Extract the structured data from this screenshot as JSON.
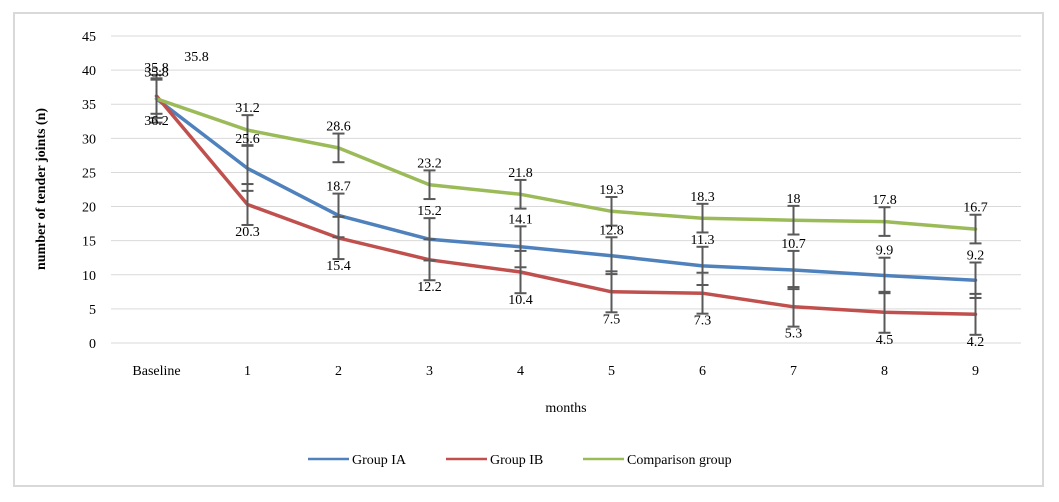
{
  "chart_data": {
    "type": "line",
    "title": "",
    "xlabel": "months",
    "ylabel": "number of tender joints (n)",
    "ylim": [
      0,
      45
    ],
    "yticks": [
      0,
      5,
      10,
      15,
      20,
      25,
      30,
      35,
      40,
      45
    ],
    "grid": true,
    "legend_position": "bottom",
    "categories": [
      "Baseline",
      "1",
      "2",
      "3",
      "4",
      "5",
      "6",
      "7",
      "8",
      "9"
    ],
    "series": [
      {
        "name": "Group IA",
        "color": "#4f81bd",
        "values": [
          35.8,
          25.6,
          18.7,
          15.2,
          14.1,
          12.8,
          11.3,
          10.7,
          9.9,
          9.2
        ],
        "labels": [
          "35.8",
          "25.6",
          "18.7",
          "15.2",
          "14.1",
          "12.8",
          "11.3",
          "10.7",
          "9.9",
          "9.2"
        ],
        "label_position": "above",
        "error": [
          3.5,
          3.3,
          3.2,
          3.1,
          3.0,
          2.7,
          2.8,
          2.8,
          2.6,
          2.6
        ]
      },
      {
        "name": "Group IB",
        "color": "#c0504d",
        "values": [
          36.2,
          20.3,
          15.4,
          12.2,
          10.4,
          7.5,
          7.3,
          5.3,
          4.5,
          4.2
        ],
        "labels": [
          "36.2",
          "20.3",
          "15.4",
          "12.2",
          "10.4",
          "7.5",
          "7.3",
          "5.3",
          "4.5",
          "4.2"
        ],
        "label_position": "below",
        "error": [
          2.6,
          3.0,
          3.1,
          3.0,
          3.1,
          3.0,
          3.0,
          2.9,
          3.0,
          3.0
        ]
      },
      {
        "name": "Comparison group",
        "color": "#9bbb59",
        "values": [
          35.8,
          31.2,
          28.6,
          23.2,
          21.8,
          19.3,
          18.3,
          18.0,
          17.8,
          16.7
        ],
        "labels": [
          "35.8",
          "31.2",
          "28.6",
          "23.2",
          "21.8",
          "19.3",
          "18.3",
          "18",
          "17.8",
          "16.7"
        ],
        "label_position": "above",
        "error": [
          2.8,
          2.2,
          2.1,
          2.1,
          2.1,
          2.1,
          2.1,
          2.1,
          2.1,
          2.1
        ]
      }
    ],
    "extra_annotations": [
      {
        "text": "35.8",
        "near_category": "Baseline",
        "position": "above-right"
      }
    ]
  }
}
